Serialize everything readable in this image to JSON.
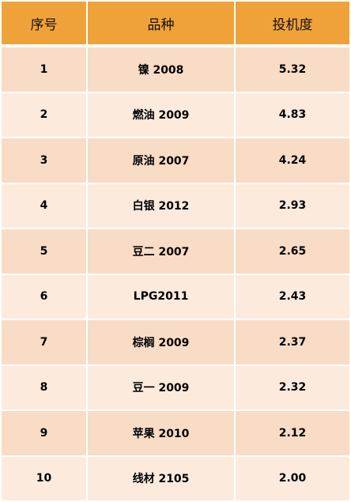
{
  "header": {
    "col_index": "序号",
    "col_variety": "品种",
    "col_spec": "投机度"
  },
  "rows": [
    {
      "index": "1",
      "variety": "镍 2008",
      "spec": "5.32"
    },
    {
      "index": "2",
      "variety": "燃油 2009",
      "spec": "4.83"
    },
    {
      "index": "3",
      "variety": "原油 2007",
      "spec": "4.24"
    },
    {
      "index": "4",
      "variety": "白银 2012",
      "spec": "2.93"
    },
    {
      "index": "5",
      "variety": "豆二 2007",
      "spec": "2.65"
    },
    {
      "index": "6",
      "variety": "LPG2011",
      "spec": "2.43"
    },
    {
      "index": "7",
      "variety": "棕榈 2009",
      "spec": "2.37"
    },
    {
      "index": "8",
      "variety": "豆一 2009",
      "spec": "2.32"
    },
    {
      "index": "9",
      "variety": "苹果 2010",
      "spec": "2.12"
    },
    {
      "index": "10",
      "variety": "线材 2105",
      "spec": "2.00"
    }
  ],
  "colors": {
    "header_bg": "#f0a23a",
    "row_dark": "#f8dcc5",
    "row_light": "#fcebdd"
  }
}
